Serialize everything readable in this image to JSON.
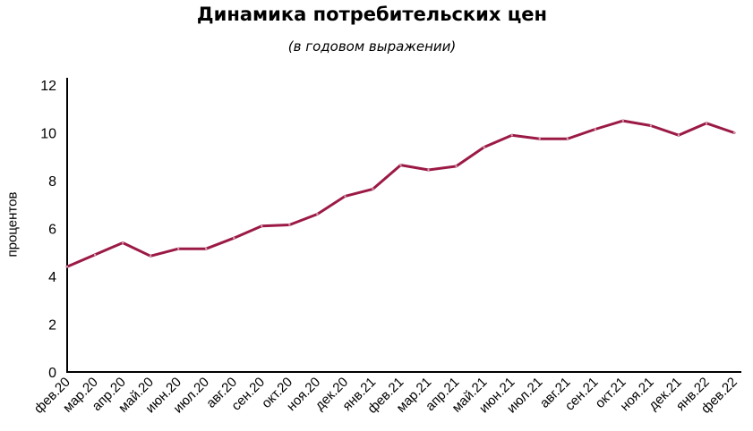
{
  "header": {
    "title": "Динамика потребительских цен",
    "subtitle": "(в годовом выражении)"
  },
  "chart_data": {
    "type": "line",
    "title": "Динамика потребительских цен",
    "subtitle": "(в годовом выражении)",
    "ylabel": "процентов",
    "xlabel": "",
    "ylim": [
      0,
      12
    ],
    "yticks": [
      "0",
      "2",
      "4",
      "6",
      "8",
      "10",
      "12"
    ],
    "grid": false,
    "legend": "none",
    "line_color": "#9b1a45",
    "categories": [
      "фев.20",
      "мар.20",
      "апр.20",
      "май.20",
      "июн.20",
      "июл.20",
      "авг.20",
      "сен.20",
      "окт.20",
      "ноя.20",
      "дек.20",
      "янв.21",
      "фев.21",
      "мар.21",
      "апр.21",
      "май.21",
      "июн.21",
      "июл.21",
      "авг.21",
      "сен.21",
      "окт.21",
      "ноя.21",
      "дек.21",
      "янв.22",
      "фев.22"
    ],
    "series": [
      {
        "values": [
          4.4,
          4.9,
          5.4,
          4.85,
          5.15,
          5.15,
          5.6,
          6.1,
          6.15,
          6.6,
          7.35,
          7.65,
          8.65,
          8.45,
          8.6,
          9.4,
          9.9,
          9.75,
          9.75,
          10.15,
          10.5,
          10.3,
          9.9,
          10.4,
          10.0
        ]
      }
    ]
  }
}
